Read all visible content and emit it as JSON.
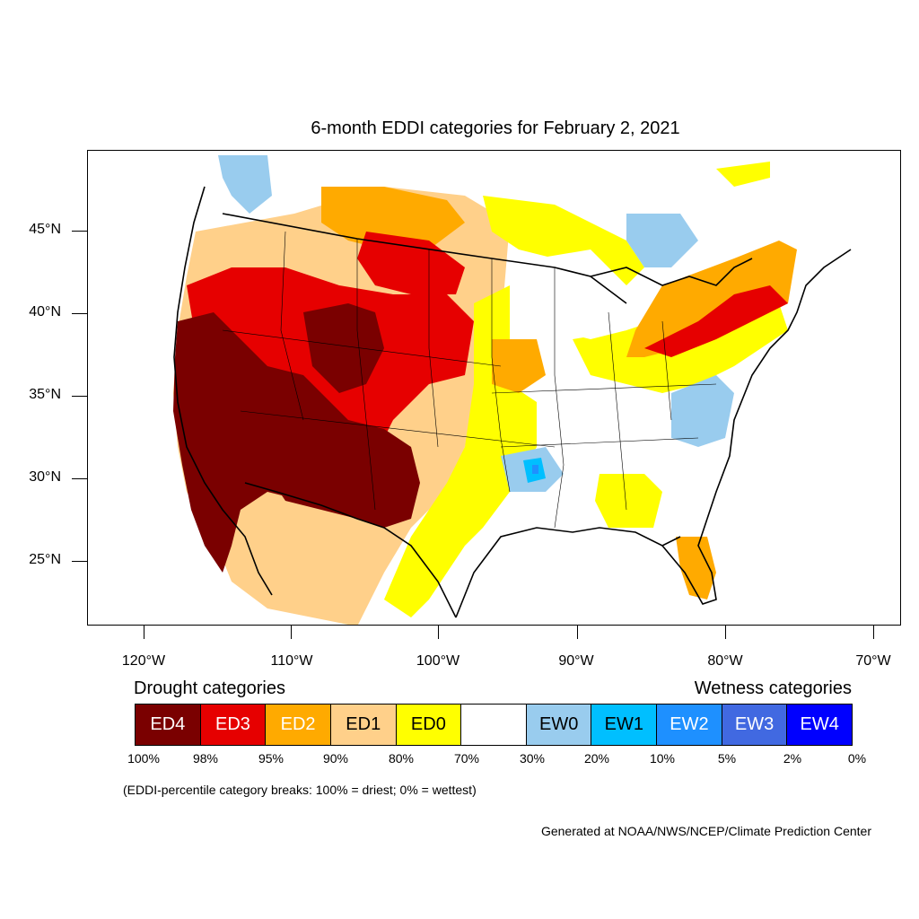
{
  "title": "6-month EDDI categories for February 2, 2021",
  "colors": {
    "ED4": "#7a0000",
    "ED3": "#e60000",
    "ED2": "#ffaa00",
    "ED1": "#ffd08a",
    "ED0": "#ffff00",
    "neutral": "#ffffff",
    "EW0": "#99ccee",
    "EW1": "#00bfff",
    "EW2": "#1e90ff",
    "EW3": "#4169e1",
    "EW4": "#0000ff"
  },
  "latitude_labels": [
    "45°N",
    "40°N",
    "35°N",
    "30°N",
    "25°N"
  ],
  "longitude_labels": [
    "120°W",
    "110°W",
    "100°W",
    "90°W",
    "80°W",
    "70°W"
  ],
  "legend": {
    "drought_heading": "Drought categories",
    "wetness_heading": "Wetness categories",
    "categories": [
      {
        "label": "ED4",
        "color": "#7a0000",
        "text_color": "#ffffff"
      },
      {
        "label": "ED3",
        "color": "#e60000",
        "text_color": "#ffffff"
      },
      {
        "label": "ED2",
        "color": "#ffaa00",
        "text_color": "#ffffff"
      },
      {
        "label": "ED1",
        "color": "#ffd08a",
        "text_color": "#000000"
      },
      {
        "label": "ED0",
        "color": "#ffff00",
        "text_color": "#000000"
      },
      {
        "label": "",
        "color": "#ffffff",
        "text_color": "#000000"
      },
      {
        "label": "EW0",
        "color": "#99ccee",
        "text_color": "#000000"
      },
      {
        "label": "EW1",
        "color": "#00bfff",
        "text_color": "#000000"
      },
      {
        "label": "EW2",
        "color": "#1e90ff",
        "text_color": "#ffffff"
      },
      {
        "label": "EW3",
        "color": "#4169e1",
        "text_color": "#ffffff"
      },
      {
        "label": "EW4",
        "color": "#0000ff",
        "text_color": "#ffffff"
      }
    ],
    "percentile_breaks": [
      "100%",
      "98%",
      "95%",
      "90%",
      "80%",
      "70%",
      "30%",
      "20%",
      "10%",
      "5%",
      "2%",
      "0%"
    ]
  },
  "note": "(EDDI-percentile category breaks: 100% = driest; 0% = wettest)",
  "credit": "Generated at NOAA/NWS/NCEP/Climate Prediction Center"
}
